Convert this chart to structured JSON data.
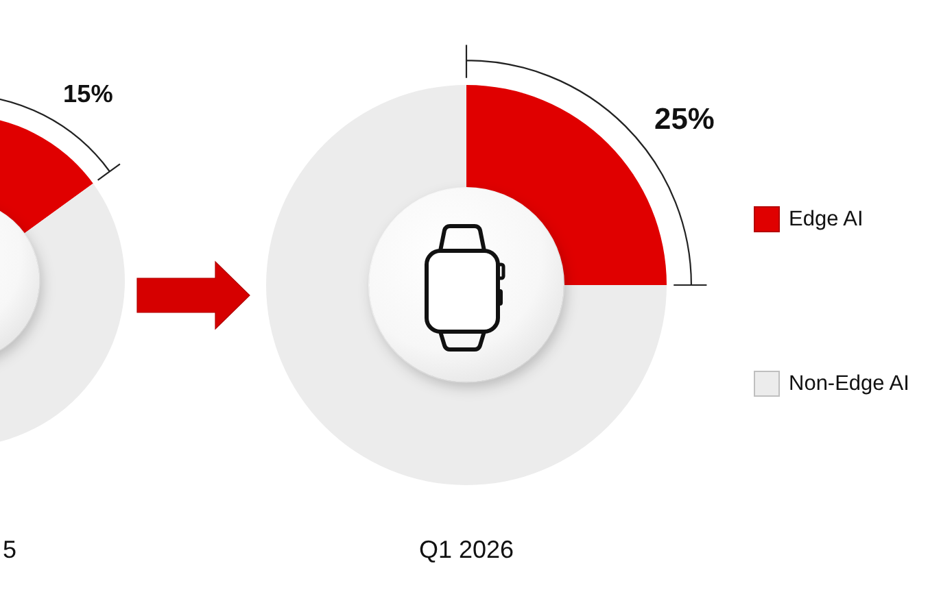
{
  "chart_data": [
    {
      "type": "donut",
      "title": "5",
      "categories": [
        null,
        null
      ],
      "values": [
        15,
        85
      ],
      "colors": [
        "#e00000",
        "#ececec"
      ],
      "value_labels": [
        "15%",
        null
      ]
    },
    {
      "type": "donut",
      "title": "Q1 2026",
      "categories": [
        "Edge AI",
        "Non-Edge AI"
      ],
      "values": [
        25,
        75
      ],
      "colors": [
        "#e00000",
        "#ececec"
      ],
      "value_labels": [
        "25%",
        null
      ],
      "legend": "right"
    }
  ]
}
